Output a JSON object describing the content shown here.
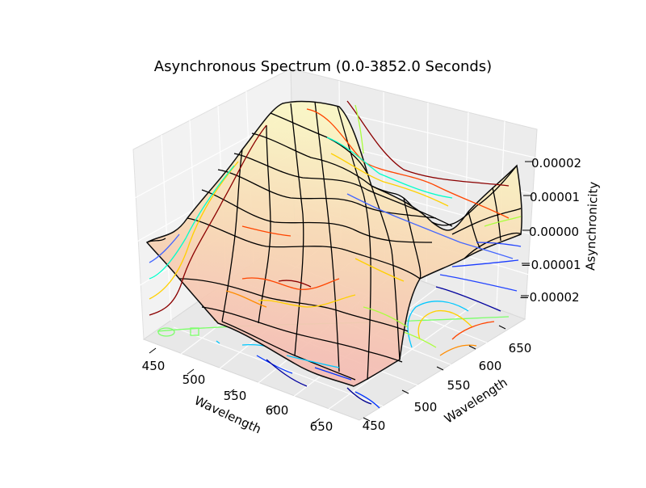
{
  "chart_data": {
    "type": "surface3d",
    "title": "Asynchronous Spectrum (0.0-3852.0 Seconds)",
    "xlabel": "Wavelength",
    "ylabel": "Wavelength",
    "zlabel": "Asynchronicity",
    "x_ticks": [
      "450",
      "500",
      "550",
      "600",
      "650"
    ],
    "y_ticks": [
      "450",
      "500",
      "550",
      "600",
      "650"
    ],
    "z_ticks": [
      "−0.00002",
      "−0.00001",
      "0.00000",
      "0.00001",
      "0.00002"
    ],
    "xlim": [
      430,
      670
    ],
    "ylim": [
      430,
      670
    ],
    "zlim": [
      -2.5e-05,
      2.5e-05
    ],
    "grid": true,
    "colormap": "jet",
    "surface_colors": [
      "#f4b6b6",
      "#f8d2b0",
      "#faf3bf"
    ],
    "mesh_color": "#000000"
  }
}
